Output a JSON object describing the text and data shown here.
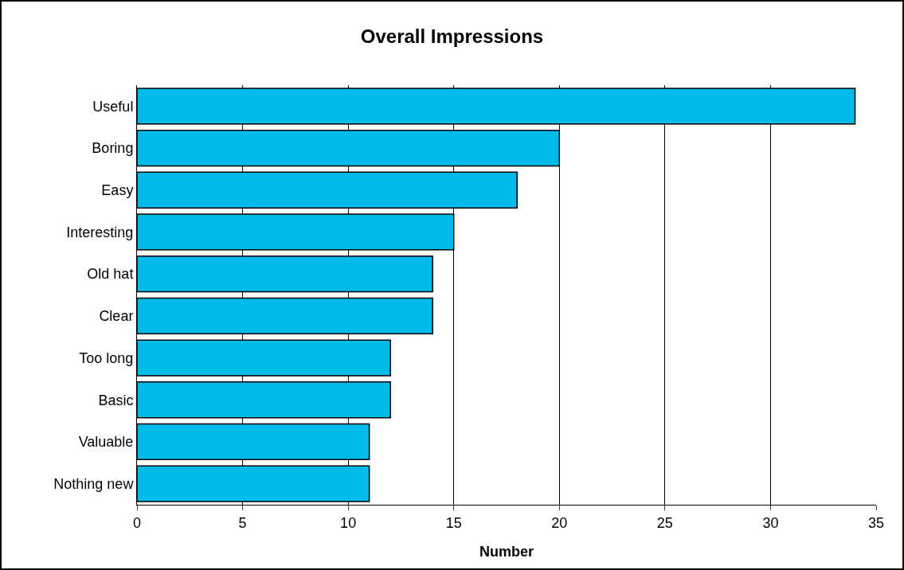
{
  "chart_data": {
    "type": "bar",
    "title": "Overall Impressions",
    "xlabel": "Number",
    "orientation": "horizontal",
    "categories": [
      "Useful",
      "Boring",
      "Easy",
      "Interesting",
      "Old hat",
      "Clear",
      "Too long",
      "Basic",
      "Valuable",
      "Nothing new"
    ],
    "values": [
      34,
      20,
      18,
      15,
      14,
      14,
      12,
      12,
      11,
      11
    ],
    "color": "#00bbea",
    "xlim": [
      0,
      35
    ],
    "xticks": [
      0,
      5,
      10,
      15,
      20,
      25,
      30,
      35
    ],
    "grid": "x"
  }
}
